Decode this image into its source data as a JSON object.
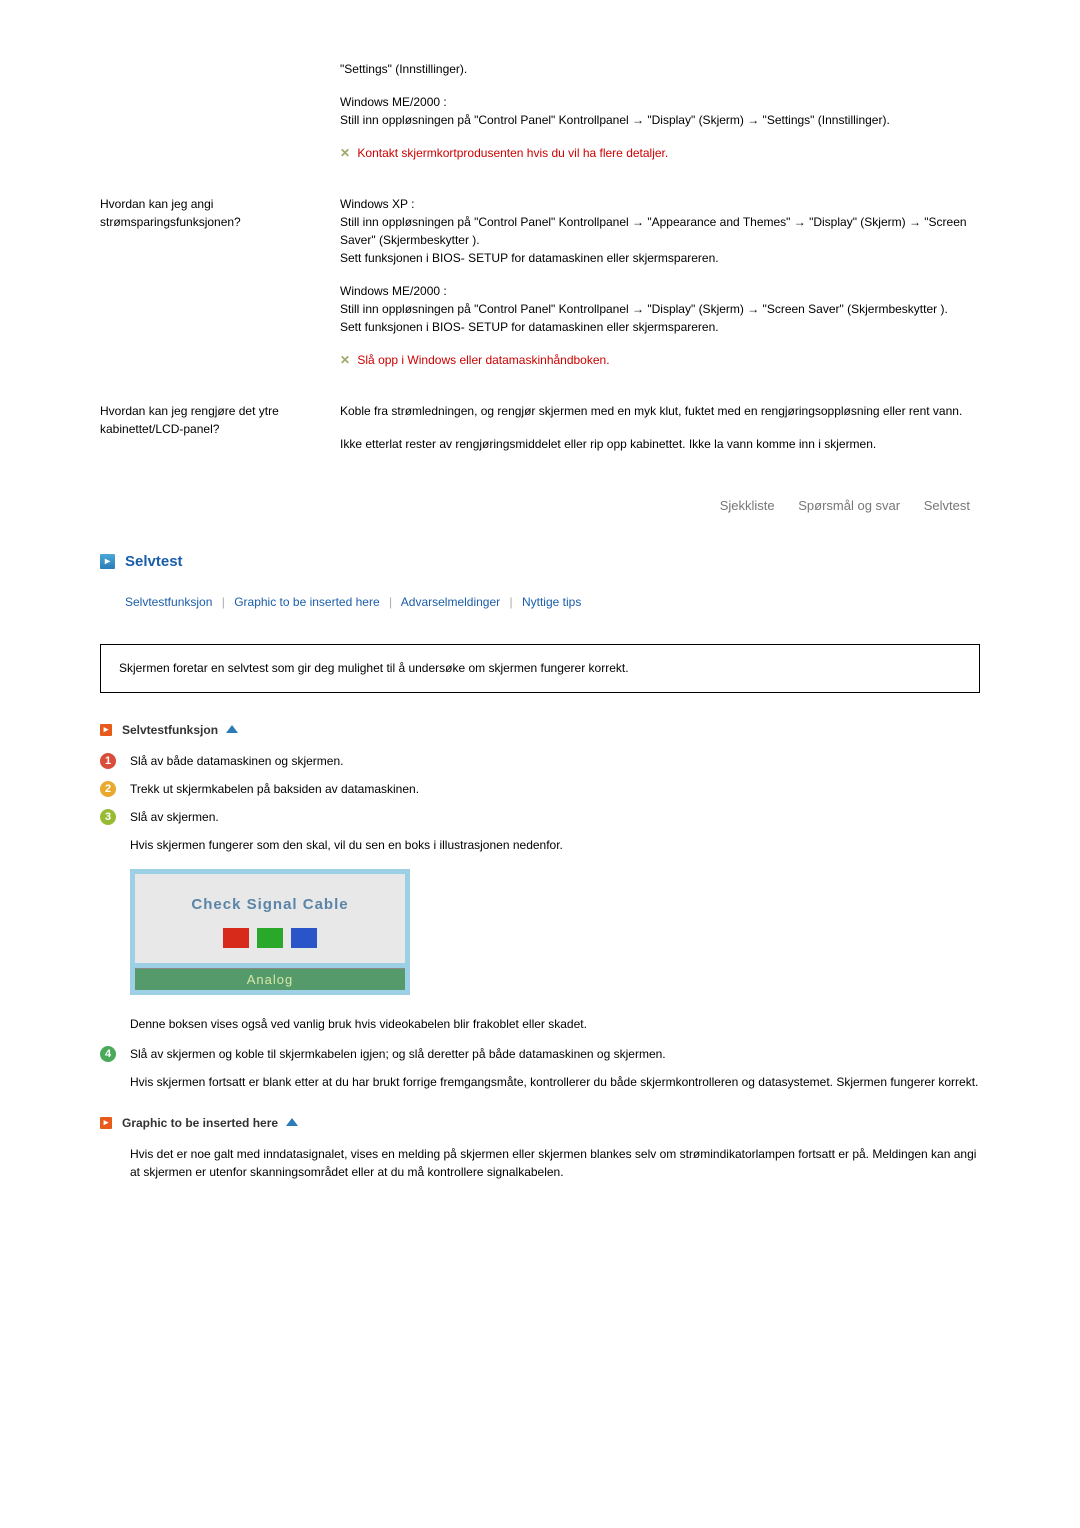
{
  "qa": {
    "row0": {
      "a1_line1": "\"Settings\" (Innstillinger).",
      "a2_title": "Windows ME/2000 :",
      "a2_body": "Still inn oppløsningen på \"Control Panel\" Kontrollpanel → \"Display\" (Skjerm) → \"Settings\" (Innstillinger).",
      "note": "Kontakt skjermkortprodusenten hvis du vil ha flere detaljer."
    },
    "row1": {
      "q": "Hvordan kan jeg angi strømsparingsfunksjonen?",
      "a1_title": "Windows XP :",
      "a1_body": "Still inn oppløsningen på \"Control Panel\" Kontrollpanel → \"Appearance and Themes\" → \"Display\" (Skjerm) → \"Screen Saver\" (Skjermbeskytter ).",
      "a1_foot": "Sett funksjonen i BIOS- SETUP for datamaskinen eller skjermspareren.",
      "a2_title": "Windows ME/2000 :",
      "a2_body": "Still inn oppløsningen på \"Control Panel\" Kontrollpanel → \"Display\" (Skjerm) → \"Screen Saver\" (Skjermbeskytter ).",
      "a2_foot": "Sett funksjonen i BIOS- SETUP for datamaskinen eller skjermspareren.",
      "note": "Slå opp i Windows eller datamaskinhåndboken."
    },
    "row2": {
      "q": "Hvordan kan jeg rengjøre det ytre kabinettet/LCD-panel?",
      "a1": "Koble fra strømledningen, og rengjør skjermen med en myk klut, fuktet med en rengjøringsoppløsning eller rent vann.",
      "a2": "Ikke etterlat rester av rengjøringsmiddelet eller rip opp kabinettet. Ikke la vann komme inn i skjermen."
    }
  },
  "nav": {
    "item1": "Sjekkliste",
    "item2": "Spørsmål og svar",
    "item3": "Selvtest"
  },
  "section": {
    "title": "Selvtest"
  },
  "sublinks": {
    "l1": "Selvtestfunksjon",
    "l2": "Graphic to be inserted here",
    "l3": "Advarselmeldinger",
    "l4": "Nyttige tips"
  },
  "infobox": "Skjermen foretar en selvtest som gir deg mulighet til å undersøke om skjermen fungerer korrekt.",
  "sub1": {
    "title": "Selvtestfunksjon"
  },
  "steps": {
    "s1": "Slå av både datamaskinen og skjermen.",
    "s2": "Trekk ut skjermkabelen på baksiden av datamaskinen.",
    "s3": "Slå av skjermen.",
    "s3_body": "Hvis skjermen fungerer som den skal, vil du sen en boks i illustrasjonen nedenfor.",
    "signal_text": "Check Signal Cable",
    "signal_footer": "Analog",
    "s3_after": "Denne boksen vises også ved vanlig bruk hvis videokabelen blir frakoblet eller skadet.",
    "s4": "Slå av skjermen og koble til skjermkabelen igjen; og slå deretter på både datamaskinen og skjermen.",
    "s4_body": "Hvis skjermen fortsatt er blank etter at du har brukt forrige fremgangsmåte, kontrollerer du både skjermkontrolleren og datasystemet. Skjermen fungerer korrekt."
  },
  "sub2": {
    "title": "Graphic to be inserted here",
    "body": "Hvis det er noe galt med inndatasignalet, vises en melding på skjermen eller skjermen blankes selv om strømindikatorlampen fortsatt er på. Meldingen kan angi at skjermen er utenfor skanningsområdet eller at du må kontrollere signalkabelen."
  }
}
